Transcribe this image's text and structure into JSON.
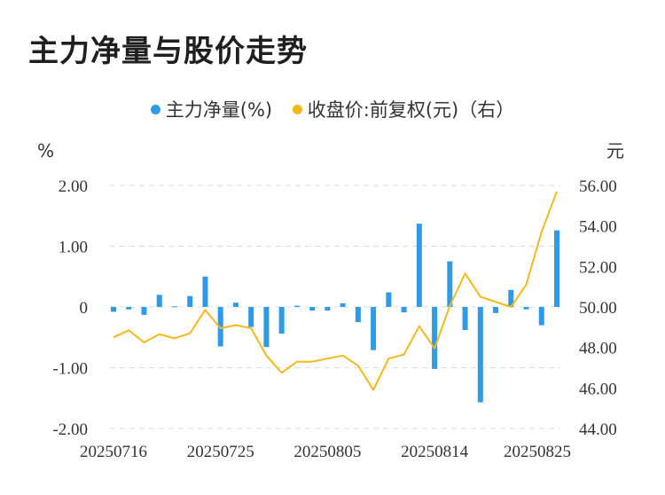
{
  "title": "主力净量与股价走势",
  "legend": [
    {
      "label": "主力净量(%)",
      "color": "#2f9be8"
    },
    {
      "label": "收盘价:前复权(元)（右）",
      "color": "#f5b81c"
    }
  ],
  "chart_data": {
    "type": "bar+line",
    "left_axis": {
      "unit": "%",
      "ylim": [
        -2,
        2
      ],
      "ticks": [
        "2.00",
        "1.00",
        "0",
        "-1.00",
        "-2.00"
      ],
      "tick_values": [
        2,
        1,
        0,
        -1,
        -2
      ]
    },
    "right_axis": {
      "unit": "元",
      "ylim": [
        44,
        56
      ],
      "ticks": [
        "56.00",
        "54.00",
        "52.00",
        "50.00",
        "48.00",
        "46.00",
        "44.00"
      ],
      "tick_values": [
        56,
        54,
        52,
        50,
        48,
        46,
        44
      ]
    },
    "x_ticks": [
      "20250716",
      "20250725",
      "20250805",
      "20250814",
      "20250825"
    ],
    "x_tick_index": [
      0,
      7,
      14,
      21,
      29
    ],
    "grid": true,
    "series": [
      {
        "name": "主力净量(%)",
        "type": "bar",
        "color": "#2f9be8",
        "values": [
          -0.08,
          -0.04,
          -0.13,
          0.2,
          0.01,
          0.18,
          0.5,
          -0.65,
          0.07,
          -0.33,
          -0.66,
          -0.44,
          0.02,
          -0.06,
          -0.06,
          0.06,
          -0.25,
          -0.71,
          0.24,
          -0.09,
          1.37,
          -1.02,
          0.75,
          -0.38,
          -1.57,
          -0.1,
          0.28,
          -0.04,
          -0.3,
          1.26
        ]
      },
      {
        "name": "收盘价:前复权(元)（右）",
        "type": "line",
        "color": "#f5b81c",
        "values": [
          48.5,
          48.85,
          48.25,
          48.65,
          48.45,
          48.7,
          49.85,
          48.95,
          49.1,
          48.95,
          47.6,
          46.75,
          47.3,
          47.3,
          47.45,
          47.6,
          47.1,
          45.9,
          47.45,
          47.65,
          49.05,
          47.95,
          50.05,
          51.65,
          50.5,
          50.25,
          50.0,
          51.1,
          53.7,
          55.7
        ]
      }
    ]
  }
}
